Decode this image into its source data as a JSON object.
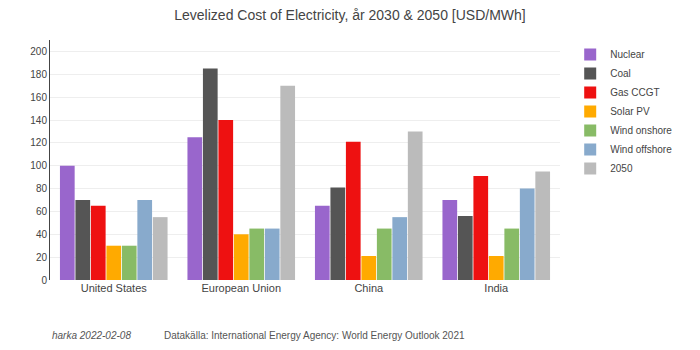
{
  "chart_data": {
    "type": "bar",
    "title": "Levelized Cost of Electricity, år 2030 & 2050 [USD/MWh]",
    "categories": [
      "United States",
      "European Union",
      "China",
      "India"
    ],
    "series": [
      {
        "name": "Nuclear",
        "color": "#9966cc",
        "values": [
          100,
          125,
          65,
          70
        ]
      },
      {
        "name": "Coal",
        "color": "#555555",
        "values": [
          70,
          185,
          81,
          56
        ]
      },
      {
        "name": "Gas CCGT",
        "color": "#ee1111",
        "values": [
          65,
          140,
          121,
          91
        ]
      },
      {
        "name": "Solar PV",
        "color": "#ffaa00",
        "values": [
          30,
          40,
          21,
          21
        ]
      },
      {
        "name": "Wind onshore",
        "color": "#88bb66",
        "values": [
          30,
          45,
          45,
          45
        ]
      },
      {
        "name": "Wind offshore",
        "color": "#88aacc",
        "values": [
          70,
          45,
          55,
          80
        ]
      },
      {
        "name": "2050",
        "color": "#bbbbbb",
        "values": [
          55,
          170,
          130,
          95
        ]
      }
    ],
    "ylim": [
      0,
      210
    ],
    "yticks": [
      0,
      20,
      40,
      60,
      80,
      100,
      120,
      140,
      160,
      180,
      200
    ],
    "grid": true,
    "legend": "right",
    "annotations": [
      "harka 2022-02-08",
      "Datakälla: International Energy Agency: World Energy Outlook 2021"
    ]
  }
}
